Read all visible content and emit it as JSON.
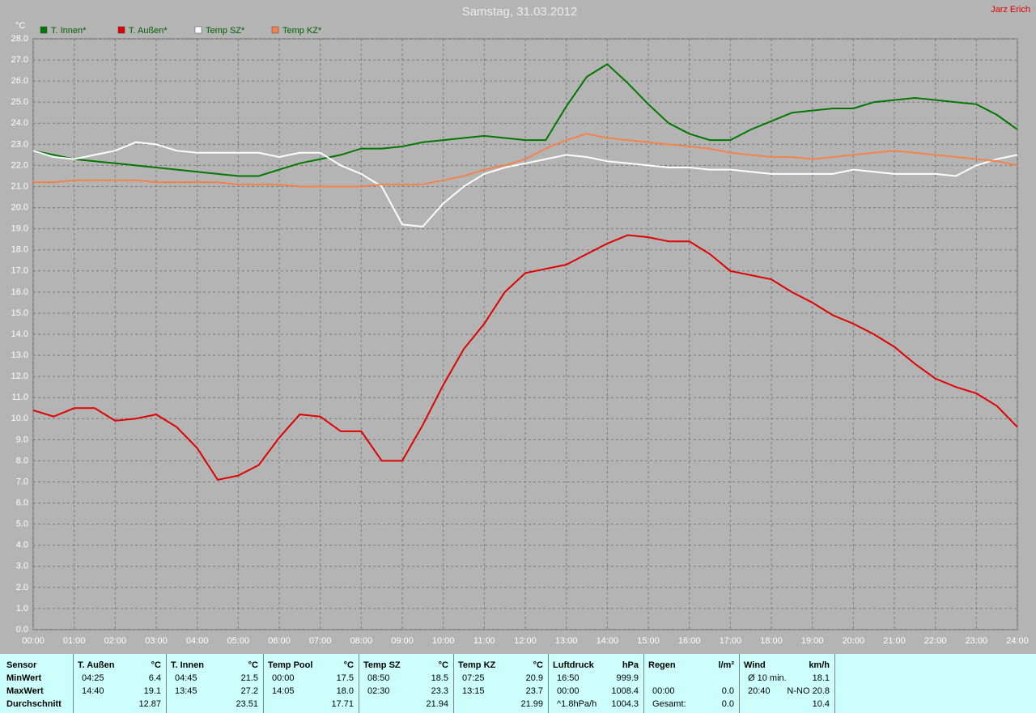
{
  "chart_data": {
    "type": "line",
    "title": "Samstag, 31.03.2012",
    "author": "Jarz Erich",
    "y_label": "°C",
    "x": [
      0,
      0.5,
      1,
      1.5,
      2,
      2.5,
      3,
      3.5,
      4,
      4.5,
      5,
      5.5,
      6,
      6.5,
      7,
      7.5,
      8,
      8.5,
      9,
      9.5,
      10,
      10.5,
      11,
      11.5,
      12,
      12.5,
      13,
      13.5,
      14,
      14.5,
      15,
      15.5,
      16,
      16.5,
      17,
      17.5,
      18,
      18.5,
      19,
      19.5,
      20,
      20.5,
      21,
      21.5,
      22,
      22.5,
      23,
      23.5,
      24
    ],
    "series": [
      {
        "name": "T. Innen*",
        "color": "#007800",
        "values": [
          22.7,
          22.5,
          22.3,
          22.2,
          22.1,
          22.0,
          21.9,
          21.8,
          21.7,
          21.6,
          21.5,
          21.5,
          21.8,
          22.1,
          22.3,
          22.5,
          22.8,
          22.8,
          22.9,
          23.1,
          23.2,
          23.3,
          23.4,
          23.3,
          23.2,
          23.2,
          24.8,
          26.2,
          26.8,
          25.9,
          24.9,
          24.0,
          23.5,
          23.2,
          23.2,
          23.7,
          24.1,
          24.5,
          24.6,
          24.7,
          24.7,
          25.0,
          25.1,
          25.2,
          25.1,
          25.0,
          24.9,
          24.4,
          23.7
        ]
      },
      {
        "name": "T. Außen*",
        "color": "#e00000",
        "values": [
          10.4,
          10.1,
          10.5,
          10.5,
          9.9,
          10.0,
          10.2,
          9.6,
          8.6,
          7.1,
          7.3,
          7.8,
          9.1,
          10.2,
          10.1,
          9.4,
          9.4,
          8.0,
          8.0,
          9.7,
          11.6,
          13.3,
          14.5,
          16.0,
          16.9,
          17.1,
          17.3,
          17.8,
          18.3,
          18.7,
          18.6,
          18.4,
          18.4,
          17.8,
          17.0,
          16.8,
          16.6,
          16.0,
          15.5,
          14.9,
          14.5,
          14.0,
          13.4,
          12.6,
          11.9,
          11.5,
          11.2,
          10.6,
          9.6
        ]
      },
      {
        "name": "Temp SZ*",
        "color": "#ffffff",
        "values": [
          22.7,
          22.4,
          22.3,
          22.5,
          22.7,
          23.1,
          23.0,
          22.7,
          22.6,
          22.6,
          22.6,
          22.6,
          22.4,
          22.6,
          22.6,
          22.0,
          21.6,
          21.0,
          19.2,
          19.1,
          20.2,
          21.0,
          21.6,
          21.9,
          22.1,
          22.3,
          22.5,
          22.4,
          22.2,
          22.1,
          22.0,
          21.9,
          21.9,
          21.8,
          21.8,
          21.7,
          21.6,
          21.6,
          21.6,
          21.6,
          21.8,
          21.7,
          21.6,
          21.6,
          21.6,
          21.5,
          22.0,
          22.3,
          22.5
        ]
      },
      {
        "name": "Temp KZ*",
        "color": "#f5824a",
        "values": [
          21.2,
          21.2,
          21.3,
          21.3,
          21.3,
          21.3,
          21.2,
          21.2,
          21.2,
          21.2,
          21.1,
          21.1,
          21.1,
          21.0,
          21.0,
          21.0,
          21.0,
          21.1,
          21.1,
          21.1,
          21.3,
          21.5,
          21.8,
          22.0,
          22.3,
          22.8,
          23.2,
          23.5,
          23.3,
          23.2,
          23.1,
          23.0,
          22.9,
          22.8,
          22.6,
          22.5,
          22.4,
          22.4,
          22.3,
          22.4,
          22.5,
          22.6,
          22.7,
          22.6,
          22.5,
          22.4,
          22.3,
          22.2,
          22.0
        ]
      }
    ],
    "xlim": [
      0,
      24
    ],
    "xticks": [
      {
        "value": 0,
        "label": "00:00"
      },
      {
        "value": 1,
        "label": "01:00"
      },
      {
        "value": 2,
        "label": "02:00"
      },
      {
        "value": 3,
        "label": "03:00"
      },
      {
        "value": 4,
        "label": "04:00"
      },
      {
        "value": 5,
        "label": "05:00"
      },
      {
        "value": 6,
        "label": "06:00"
      },
      {
        "value": 7,
        "label": "07:00"
      },
      {
        "value": 8,
        "label": "08:00"
      },
      {
        "value": 9,
        "label": "09:00"
      },
      {
        "value": 10,
        "label": "10:00"
      },
      {
        "value": 11,
        "label": "11:00"
      },
      {
        "value": 12,
        "label": "12:00"
      },
      {
        "value": 13,
        "label": "13:00"
      },
      {
        "value": 14,
        "label": "14:00"
      },
      {
        "value": 15,
        "label": "15:00"
      },
      {
        "value": 16,
        "label": "16:00"
      },
      {
        "value": 17,
        "label": "17:00"
      },
      {
        "value": 18,
        "label": "18:00"
      },
      {
        "value": 19,
        "label": "19:00"
      },
      {
        "value": 20,
        "label": "20:00"
      },
      {
        "value": 21,
        "label": "21:00"
      },
      {
        "value": 22,
        "label": "22:00"
      },
      {
        "value": 23,
        "label": "23:00"
      },
      {
        "value": 24,
        "label": "24:00"
      }
    ],
    "ylim": [
      0,
      28
    ],
    "yticks": [
      {
        "value": 0,
        "label": "0.0"
      },
      {
        "value": 1,
        "label": "1.0"
      },
      {
        "value": 2,
        "label": "2.0"
      },
      {
        "value": 3,
        "label": "3.0"
      },
      {
        "value": 4,
        "label": "4.0"
      },
      {
        "value": 5,
        "label": "5.0"
      },
      {
        "value": 6,
        "label": "6.0"
      },
      {
        "value": 7,
        "label": "7.0"
      },
      {
        "value": 8,
        "label": "8.0"
      },
      {
        "value": 9,
        "label": "9.0"
      },
      {
        "value": 10,
        "label": "10.0"
      },
      {
        "value": 11,
        "label": "11.0"
      },
      {
        "value": 12,
        "label": "12.0"
      },
      {
        "value": 13,
        "label": "13.0"
      },
      {
        "value": 14,
        "label": "14.0"
      },
      {
        "value": 15,
        "label": "15.0"
      },
      {
        "value": 16,
        "label": "16.0"
      },
      {
        "value": 17,
        "label": "17.0"
      },
      {
        "value": 18,
        "label": "18.0"
      },
      {
        "value": 19,
        "label": "19.0"
      },
      {
        "value": 20,
        "label": "20.0"
      },
      {
        "value": 21,
        "label": "21.0"
      },
      {
        "value": 22,
        "label": "22.0"
      },
      {
        "value": 23,
        "label": "23.0"
      },
      {
        "value": 24,
        "label": "24.0"
      },
      {
        "value": 25,
        "label": "25.0"
      },
      {
        "value": 26,
        "label": "26.0"
      },
      {
        "value": 27,
        "label": "27.0"
      },
      {
        "value": 28,
        "label": "28.0"
      }
    ],
    "grid": true,
    "legend": "top-left"
  },
  "table": {
    "label_column": [
      "Sensor",
      "MinWert",
      "MaxWert",
      "Durchschnitt"
    ],
    "columns": [
      {
        "name": "T. Außen",
        "unit": "°C",
        "rows": [
          [
            "04:25",
            "6.4"
          ],
          [
            "14:40",
            "19.1"
          ],
          [
            "12.87"
          ]
        ]
      },
      {
        "name": "T. Innen",
        "unit": "°C",
        "rows": [
          [
            "04:45",
            "21.5"
          ],
          [
            "13:45",
            "27.2"
          ],
          [
            "23.51"
          ]
        ]
      },
      {
        "name": "Temp Pool",
        "unit": "°C",
        "rows": [
          [
            "00:00",
            "17.5"
          ],
          [
            "14:05",
            "18.0"
          ],
          [
            "17.71"
          ]
        ]
      },
      {
        "name": "Temp SZ",
        "unit": "°C",
        "rows": [
          [
            "08:50",
            "18.5"
          ],
          [
            "02:30",
            "23.3"
          ],
          [
            "21.94"
          ]
        ]
      },
      {
        "name": "Temp KZ",
        "unit": "°C",
        "rows": [
          [
            "07:25",
            "20.9"
          ],
          [
            "13:15",
            "23.7"
          ],
          [
            "21.99"
          ]
        ]
      },
      {
        "name": "Luftdruck",
        "unit": "hPa",
        "rows": [
          [
            "16:50",
            "999.9"
          ],
          [
            "00:00",
            "1008.4"
          ],
          [
            "^1.8hPa/h",
            "1004.3"
          ]
        ]
      },
      {
        "name": "Regen",
        "unit": "l/m²",
        "rows": [
          [],
          [
            "00:00",
            "0.0"
          ],
          [
            "Gesamt:",
            "0.0"
          ]
        ]
      },
      {
        "name": "Wind",
        "unit": "km/h",
        "rows": [
          [
            "Ø 10 min.",
            "18.1"
          ],
          [
            "20:40",
            "N-NO 20.8"
          ],
          [
            "10.4"
          ]
        ]
      }
    ]
  }
}
